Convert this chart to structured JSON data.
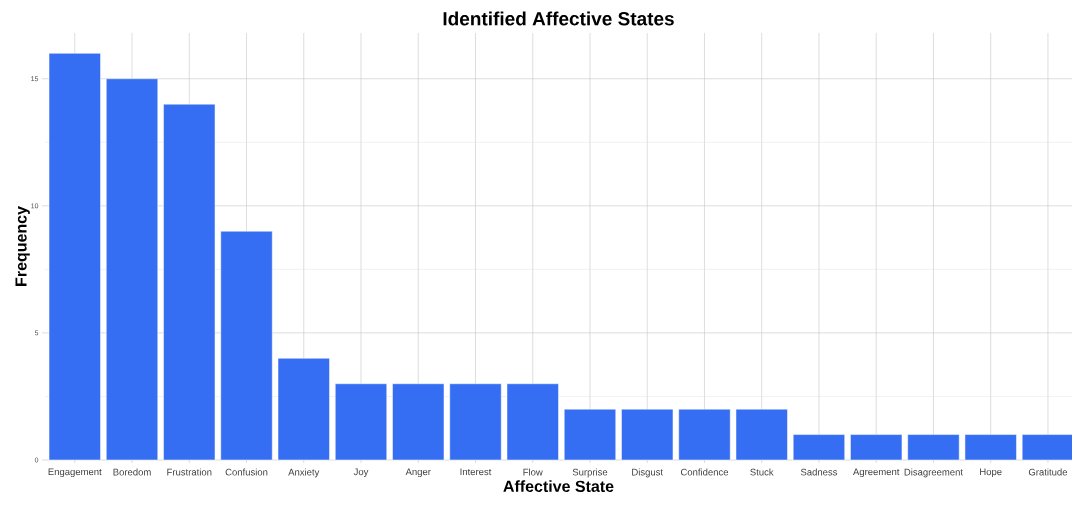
{
  "chart_data": {
    "type": "bar",
    "title": "Identified Affective States",
    "xlabel": "Affective State",
    "ylabel": "Frequency",
    "categories": [
      "Engagement",
      "Boredom",
      "Frustration",
      "Confusion",
      "Anxiety",
      "Joy",
      "Anger",
      "Interest",
      "Flow",
      "Surprise",
      "Disgust",
      "Confidence",
      "Stuck",
      "Sadness",
      "Agreement",
      "Disagreement",
      "Hope",
      "Gratitude"
    ],
    "values": [
      16,
      15,
      14,
      9,
      4,
      3,
      3,
      3,
      3,
      2,
      2,
      2,
      2,
      1,
      1,
      1,
      1,
      1
    ],
    "color": "#356ef2",
    "ylim": [
      0,
      16.8
    ],
    "yticks": [
      0,
      5,
      10,
      15
    ],
    "grid": true
  }
}
